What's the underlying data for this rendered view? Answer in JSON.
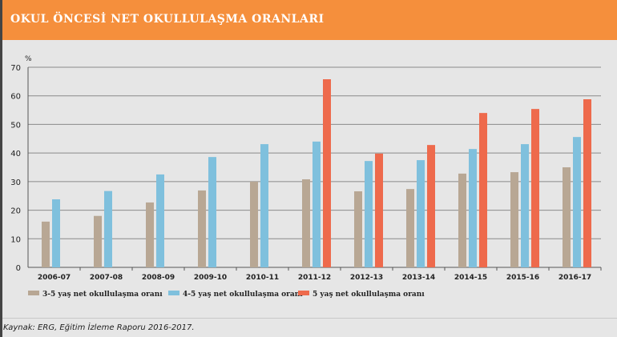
{
  "header": {
    "title": "OKUL ÖNCESİ NET OKULLULAŞMA ORANLARI"
  },
  "source": "Kaynak: ERG, Eğitim İzleme Raporu 2016-2017.",
  "chart_data": {
    "type": "bar",
    "ylabel": "%",
    "ylim": [
      0,
      70
    ],
    "yticks": [
      0,
      10,
      20,
      30,
      40,
      50,
      60,
      70
    ],
    "grid": true,
    "legend_position": "bottom",
    "categories": [
      "2006-07",
      "2007-08",
      "2008-09",
      "2009-10",
      "2010-11",
      "2011-12",
      "2012-13",
      "2013-14",
      "2014-15",
      "2015-16",
      "2016-17"
    ],
    "series": [
      {
        "name": "3-5 yaş net okullulaşma oranı",
        "color": "#b8a794",
        "values": [
          16,
          18,
          22.7,
          26.9,
          30,
          30.8,
          26.6,
          27.4,
          32.8,
          33.3,
          35
        ]
      },
      {
        "name": "4-5 yaş net okullulaşma oranı",
        "color": "#7fc0dd",
        "values": [
          23.8,
          26.7,
          32.5,
          38.6,
          43.1,
          44,
          37.2,
          37.5,
          41.4,
          43.1,
          45.6
        ]
      },
      {
        "name": "5 yaş net okullulaşma oranı",
        "color": "#ee6a4c",
        "values": [
          null,
          null,
          null,
          null,
          null,
          65.8,
          39.8,
          42.8,
          54,
          55.4,
          58.8
        ]
      }
    ]
  }
}
